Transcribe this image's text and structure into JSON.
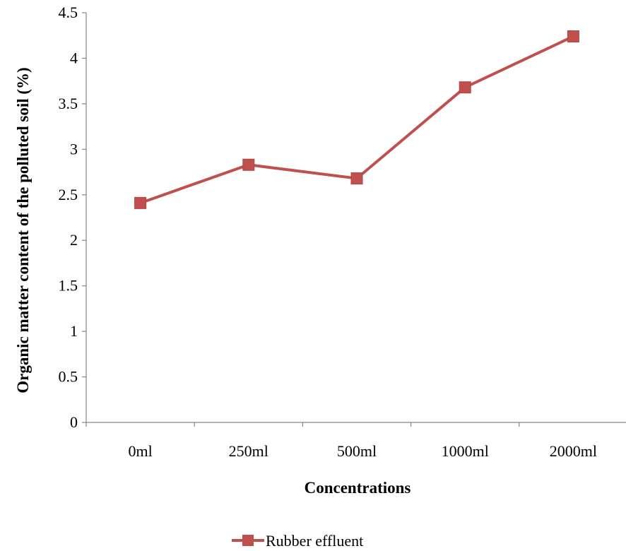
{
  "chart_data": {
    "type": "line",
    "title": "",
    "xlabel": "Concentrations",
    "ylabel": "Organic matter content of the polluted soil (%)",
    "categories": [
      "0ml",
      "250ml",
      "500ml",
      "1000ml",
      "2000ml"
    ],
    "series": [
      {
        "name": "Rubber effluent",
        "values": [
          2.41,
          2.83,
          2.68,
          3.68,
          4.24
        ],
        "color": "#C0504D",
        "marker": "square"
      }
    ],
    "ylim": [
      0,
      4.5
    ],
    "yticks": [
      "0",
      "0.5",
      "1",
      "1.5",
      "2",
      "2.5",
      "3",
      "3.5",
      "4",
      "4.5"
    ],
    "grid": false,
    "legend_position": "bottom"
  }
}
